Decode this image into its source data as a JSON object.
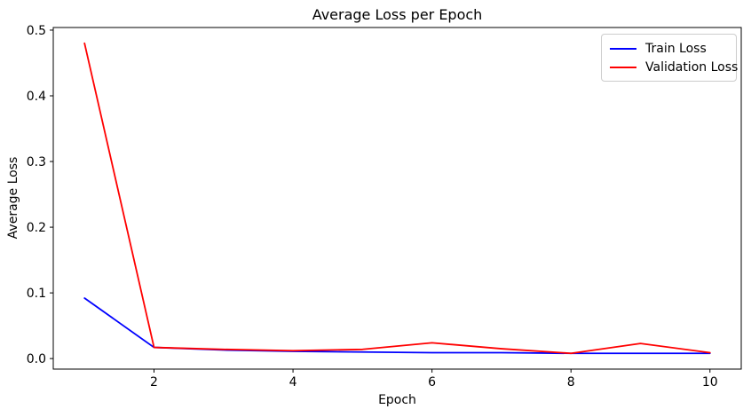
{
  "chart_data": {
    "type": "line",
    "title": "Average Loss per Epoch",
    "xlabel": "Epoch",
    "ylabel": "Average Loss",
    "x": [
      1,
      2,
      3,
      4,
      5,
      6,
      7,
      8,
      9,
      10
    ],
    "series": [
      {
        "name": "Train Loss",
        "color": "#0000ff",
        "values": [
          0.092,
          0.017,
          0.013,
          0.011,
          0.01,
          0.009,
          0.009,
          0.008,
          0.008,
          0.008
        ]
      },
      {
        "name": "Validation Loss",
        "color": "#ff0000",
        "values": [
          0.48,
          0.017,
          0.014,
          0.012,
          0.014,
          0.024,
          0.015,
          0.008,
          0.023,
          0.009
        ]
      }
    ],
    "xticks": [
      2,
      4,
      6,
      8,
      10
    ],
    "yticks": [
      0.0,
      0.1,
      0.2,
      0.3,
      0.4,
      0.5
    ],
    "xlim": [
      0.55,
      10.45
    ],
    "ylim": [
      -0.016,
      0.504
    ],
    "grid": false,
    "legend": {
      "position": "upper right"
    },
    "axis_color": "#000000",
    "background_color": "#ffffff"
  }
}
